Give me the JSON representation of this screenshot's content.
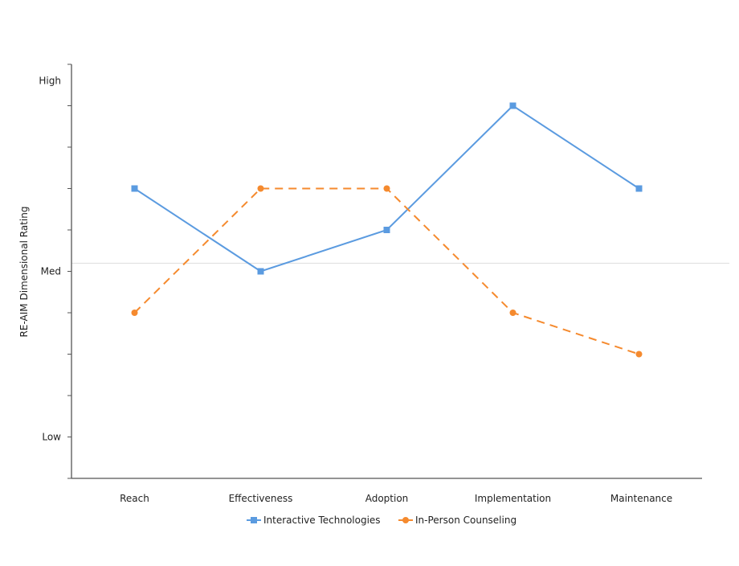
{
  "chart_data": {
    "type": "line",
    "title": "",
    "xlabel": "",
    "ylabel": "RE-AIM Dimensional Rating",
    "categories": [
      "Reach",
      "Effectiveness",
      "Adoption",
      "Implementation",
      "Maintenance"
    ],
    "ylim": [
      0,
      10
    ],
    "y_tick_labels": [
      {
        "label": "Low",
        "value": 1
      },
      {
        "label": "Med",
        "value": 5
      },
      {
        "label": "High",
        "value": 9.6
      }
    ],
    "reference_line": {
      "label": "Med",
      "value": 5.1
    },
    "grid": false,
    "legend": "bottom",
    "series": [
      {
        "name": "Interactive Technologies",
        "values": [
          7,
          5,
          6,
          9,
          7
        ],
        "color": "#5b9be0",
        "marker": "square",
        "dash": "solid"
      },
      {
        "name": "In-Person Counseling",
        "values": [
          4,
          7,
          7,
          4,
          3
        ],
        "color": "#f58a2e",
        "marker": "circle",
        "dash": "dashed"
      }
    ]
  }
}
